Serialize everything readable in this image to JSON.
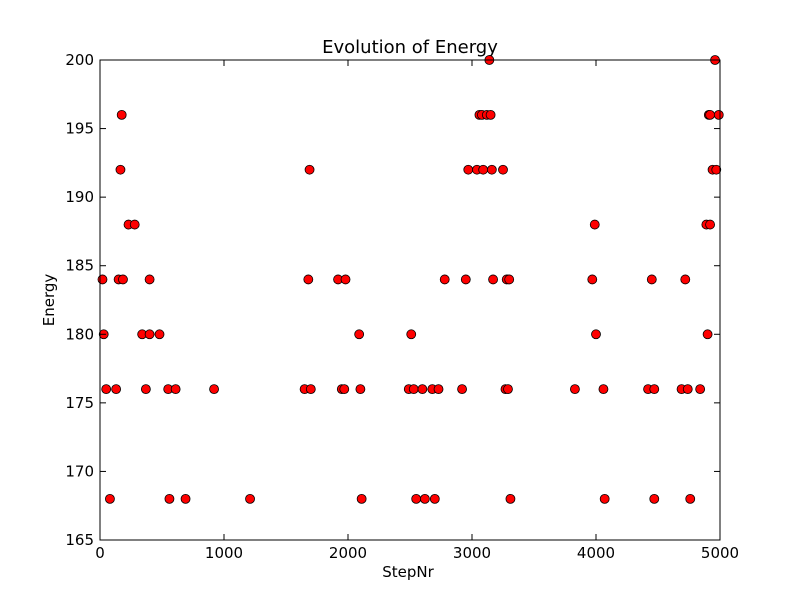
{
  "chart_data": {
    "type": "scatter",
    "title": "Evolution of Energy",
    "xlabel": "StepNr",
    "ylabel": "Energy",
    "xlim": [
      0,
      5000
    ],
    "ylim": [
      165,
      200
    ],
    "xticks": [
      0,
      1000,
      2000,
      3000,
      4000,
      5000
    ],
    "yticks": [
      165,
      170,
      175,
      180,
      185,
      190,
      195,
      200
    ],
    "grid": false,
    "marker_color": "#ff0000",
    "marker_edge": "#000000",
    "points": [
      [
        20,
        184
      ],
      [
        30,
        180
      ],
      [
        50,
        176
      ],
      [
        80,
        168
      ],
      [
        130,
        176
      ],
      [
        150,
        184
      ],
      [
        165,
        192
      ],
      [
        175,
        196
      ],
      [
        185,
        184
      ],
      [
        230,
        188
      ],
      [
        280,
        188
      ],
      [
        340,
        180
      ],
      [
        370,
        176
      ],
      [
        400,
        184
      ],
      [
        400,
        180
      ],
      [
        480,
        180
      ],
      [
        550,
        176
      ],
      [
        560,
        168
      ],
      [
        610,
        176
      ],
      [
        690,
        168
      ],
      [
        920,
        176
      ],
      [
        1210,
        168
      ],
      [
        1650,
        176
      ],
      [
        1680,
        184
      ],
      [
        1690,
        192
      ],
      [
        1700,
        176
      ],
      [
        1920,
        184
      ],
      [
        1950,
        176
      ],
      [
        1970,
        176
      ],
      [
        1980,
        184
      ],
      [
        2090,
        180
      ],
      [
        2100,
        176
      ],
      [
        2110,
        168
      ],
      [
        2490,
        176
      ],
      [
        2510,
        180
      ],
      [
        2530,
        176
      ],
      [
        2550,
        168
      ],
      [
        2600,
        176
      ],
      [
        2620,
        168
      ],
      [
        2680,
        176
      ],
      [
        2700,
        168
      ],
      [
        2730,
        176
      ],
      [
        2780,
        184
      ],
      [
        2920,
        176
      ],
      [
        2950,
        184
      ],
      [
        2970,
        192
      ],
      [
        3040,
        192
      ],
      [
        3060,
        196
      ],
      [
        3080,
        196
      ],
      [
        3090,
        192
      ],
      [
        3120,
        196
      ],
      [
        3140,
        200
      ],
      [
        3150,
        196
      ],
      [
        3160,
        192
      ],
      [
        3170,
        184
      ],
      [
        3250,
        192
      ],
      [
        3270,
        176
      ],
      [
        3280,
        184
      ],
      [
        3290,
        176
      ],
      [
        3300,
        184
      ],
      [
        3310,
        168
      ],
      [
        3830,
        176
      ],
      [
        3970,
        184
      ],
      [
        3990,
        188
      ],
      [
        4000,
        180
      ],
      [
        4060,
        176
      ],
      [
        4070,
        168
      ],
      [
        4420,
        176
      ],
      [
        4450,
        184
      ],
      [
        4470,
        176
      ],
      [
        4470,
        168
      ],
      [
        4690,
        176
      ],
      [
        4720,
        184
      ],
      [
        4740,
        176
      ],
      [
        4760,
        168
      ],
      [
        4840,
        176
      ],
      [
        4890,
        188
      ],
      [
        4900,
        180
      ],
      [
        4910,
        196
      ],
      [
        4920,
        188
      ],
      [
        4920,
        196
      ],
      [
        4940,
        192
      ],
      [
        4960,
        200
      ],
      [
        4970,
        192
      ],
      [
        4990,
        196
      ]
    ]
  }
}
